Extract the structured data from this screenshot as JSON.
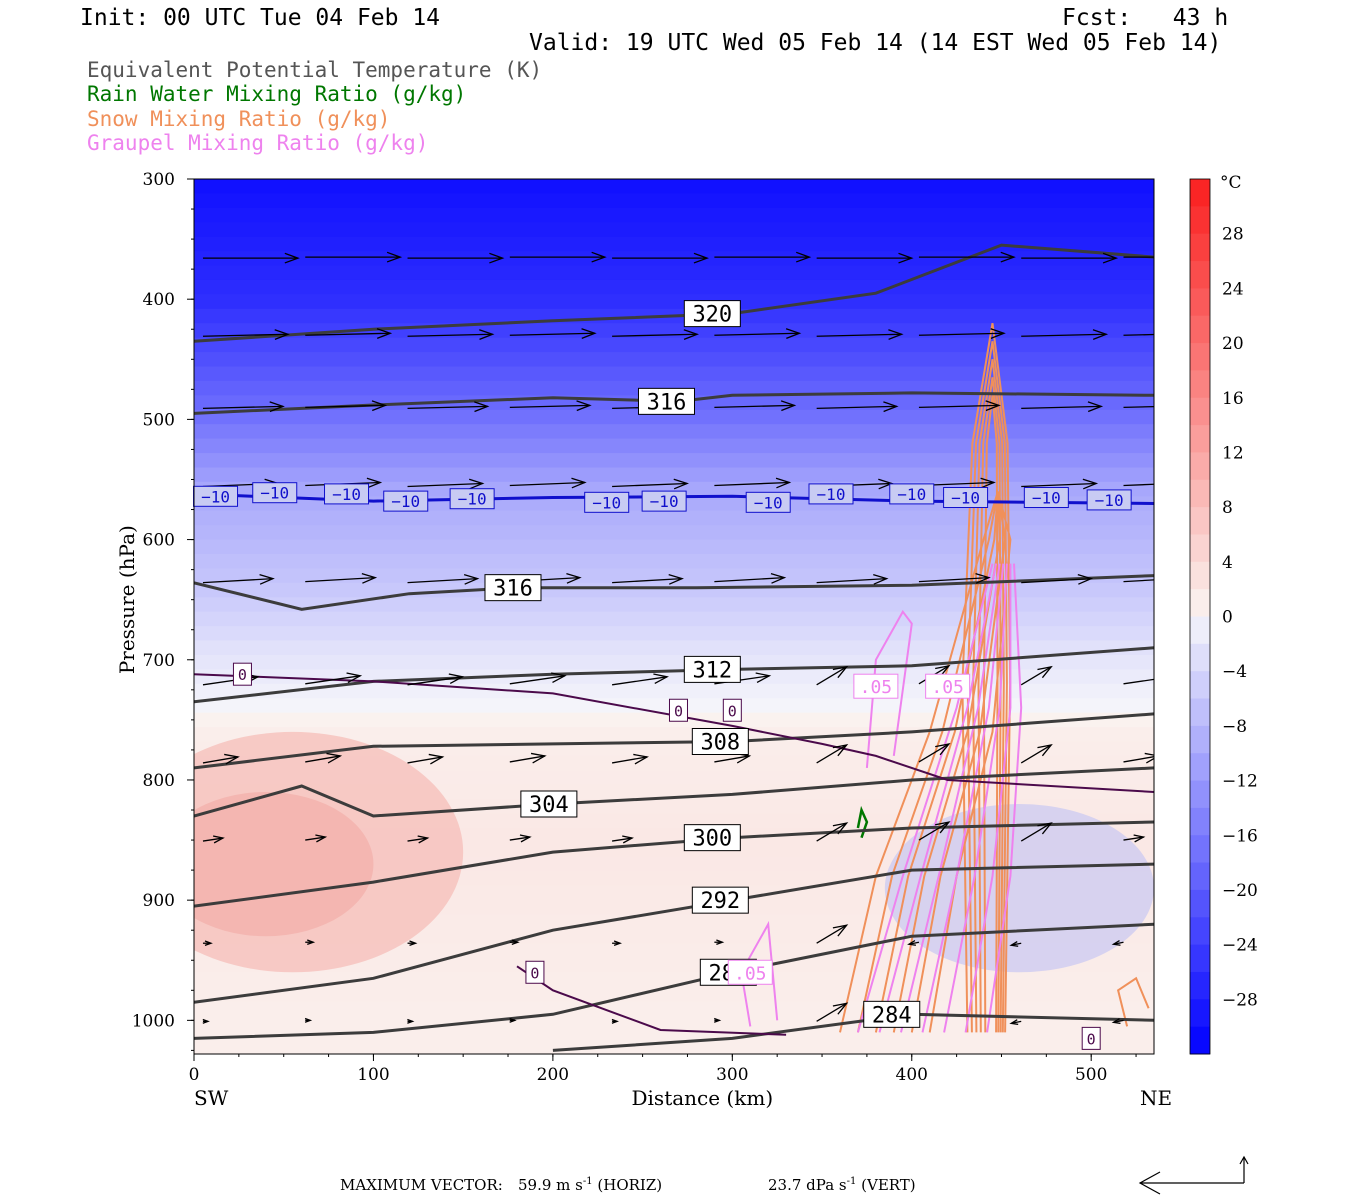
{
  "header": {
    "init": "Init: 00 UTC Tue 04 Feb 14",
    "fcst": "Fcst:   43 h",
    "valid": "Valid: 19 UTC Wed 05 Feb 14 (14 EST Wed 05 Feb 14)"
  },
  "legend": {
    "theta_e": {
      "label": "Equivalent Potential Temperature (K)",
      "color": "#555555"
    },
    "rain": {
      "label": "Rain Water Mixing Ratio (g/kg)",
      "color": "#007700"
    },
    "snow": {
      "label": "Snow Mixing Ratio (g/kg)",
      "color": "#f0905a"
    },
    "graupel": {
      "label": "Graupel Mixing Ratio (g/kg)",
      "color": "#ee82ee"
    }
  },
  "footer": {
    "max_vector_label": "MAXIMUM VECTOR:",
    "horiz": "59.9 m s",
    "horiz_unit": "(HORIZ)",
    "vert": "23.7 dPa s",
    "vert_unit": "(VERT)",
    "exponent": "-1"
  },
  "chart_data": {
    "type": "heatmap",
    "title": "",
    "xlabel": "Distance (km)",
    "ylabel": "Pressure (hPa)",
    "xlim": [
      0,
      535
    ],
    "ylim": [
      1028,
      300
    ],
    "y_log": false,
    "x_ticks": [
      "0",
      "100",
      "200",
      "300",
      "400",
      "500"
    ],
    "y_ticks": [
      "300",
      "400",
      "500",
      "600",
      "700",
      "800",
      "900",
      "1000"
    ],
    "x_end_labels": {
      "left": "SW",
      "right": "NE"
    },
    "colorbar": {
      "unit": "°C",
      "ticks": [
        "28",
        "24",
        "20",
        "16",
        "12",
        "8",
        "4",
        "0",
        "−4",
        "−8",
        "−12",
        "−16",
        "−20",
        "−24",
        "−28"
      ],
      "range": [
        -32,
        32
      ]
    },
    "shading_profile": [
      {
        "p": 300,
        "t": -30
      },
      {
        "p": 400,
        "t": -26
      },
      {
        "p": 500,
        "t": -17
      },
      {
        "p": 560,
        "t": -10
      },
      {
        "p": 640,
        "t": -6
      },
      {
        "p": 700,
        "t": -2
      },
      {
        "p": 760,
        "t": 1
      },
      {
        "p": 850,
        "t": 2
      },
      {
        "p": 1000,
        "t": 1
      }
    ],
    "theta_e_contours": [
      {
        "label": "320",
        "points": [
          [
            0,
            435
          ],
          [
            100,
            425
          ],
          [
            200,
            418
          ],
          [
            300,
            412
          ],
          [
            380,
            395
          ],
          [
            450,
            355
          ],
          [
            535,
            365
          ]
        ]
      },
      {
        "label": "316",
        "points": [
          [
            0,
            495
          ],
          [
            100,
            488
          ],
          [
            200,
            482
          ],
          [
            270,
            485
          ],
          [
            300,
            480
          ],
          [
            400,
            478
          ],
          [
            535,
            480
          ]
        ]
      },
      {
        "label": "316",
        "points": [
          [
            0,
            636
          ],
          [
            60,
            658
          ],
          [
            120,
            645
          ],
          [
            180,
            640
          ],
          [
            280,
            640
          ],
          [
            400,
            638
          ],
          [
            535,
            630
          ]
        ]
      },
      {
        "label": "312",
        "points": [
          [
            0,
            735
          ],
          [
            100,
            718
          ],
          [
            200,
            712
          ],
          [
            300,
            708
          ],
          [
            400,
            705
          ],
          [
            535,
            690
          ]
        ]
      },
      {
        "label": "308",
        "points": [
          [
            0,
            790
          ],
          [
            100,
            772
          ],
          [
            200,
            770
          ],
          [
            300,
            768
          ],
          [
            400,
            760
          ],
          [
            535,
            745
          ]
        ]
      },
      {
        "label": "304",
        "points": [
          [
            0,
            830
          ],
          [
            60,
            805
          ],
          [
            100,
            830
          ],
          [
            200,
            820
          ],
          [
            300,
            812
          ],
          [
            400,
            800
          ],
          [
            535,
            790
          ]
        ]
      },
      {
        "label": "300",
        "points": [
          [
            0,
            905
          ],
          [
            100,
            885
          ],
          [
            200,
            860
          ],
          [
            300,
            848
          ],
          [
            400,
            840
          ],
          [
            535,
            835
          ]
        ]
      },
      {
        "label": "292",
        "points": [
          [
            0,
            985
          ],
          [
            100,
            965
          ],
          [
            200,
            925
          ],
          [
            300,
            900
          ],
          [
            400,
            875
          ],
          [
            535,
            870
          ]
        ]
      },
      {
        "label": "288",
        "points": [
          [
            0,
            1015
          ],
          [
            100,
            1010
          ],
          [
            200,
            995
          ],
          [
            300,
            960
          ],
          [
            400,
            930
          ],
          [
            535,
            920
          ]
        ]
      },
      {
        "label": "284",
        "points": [
          [
            200,
            1025
          ],
          [
            300,
            1015
          ],
          [
            400,
            995
          ],
          [
            535,
            1000
          ]
        ]
      }
    ],
    "isotherm_minus10": {
      "label": "−10",
      "points": [
        [
          0,
          562
        ],
        [
          100,
          568
        ],
        [
          200,
          565
        ],
        [
          300,
          564
        ],
        [
          400,
          568
        ],
        [
          535,
          570
        ]
      ]
    },
    "isotherm_zero": {
      "label": "0",
      "points": [
        [
          0,
          712
        ],
        [
          100,
          718
        ],
        [
          200,
          728
        ],
        [
          300,
          755
        ],
        [
          350,
          770
        ],
        [
          380,
          780
        ],
        [
          420,
          800
        ],
        [
          535,
          810
        ]
      ]
    },
    "snow_max_location": {
      "x_km": 445,
      "p_top": 420,
      "p_bottom": 1010
    },
    "graupel_labels": [
      ".05",
      ".05",
      ".05"
    ]
  }
}
